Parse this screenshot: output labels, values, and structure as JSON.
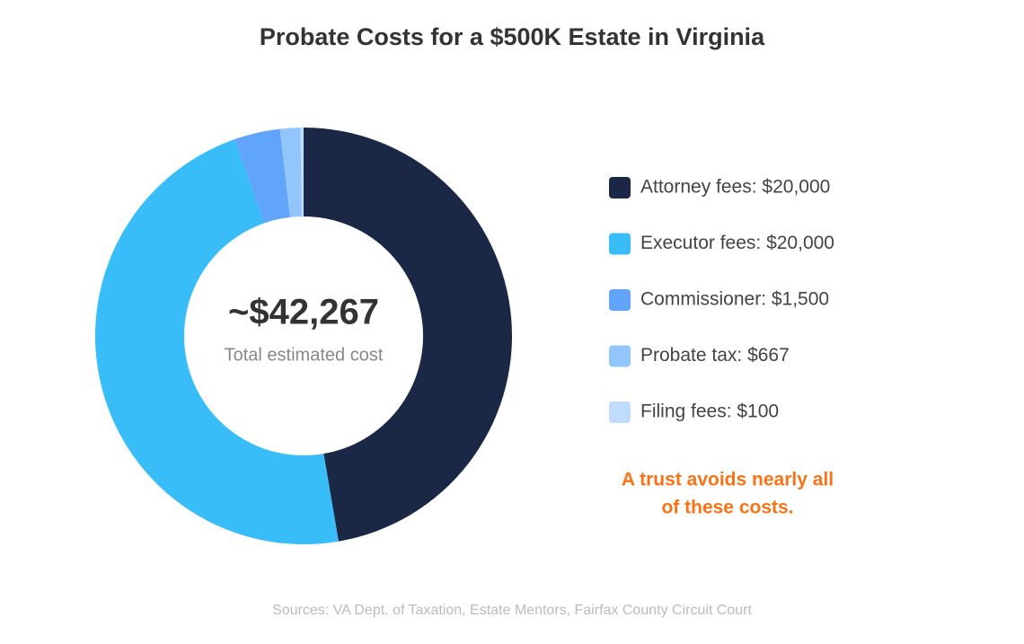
{
  "chart_data": {
    "type": "donut",
    "title": "Probate Costs for a $500K Estate in Virginia",
    "categories": [
      "Attorney fees: $20,000",
      "Executor fees: $20,000",
      "Commissioner: $1,500",
      "Probate tax: $667",
      "Filing fees: $100"
    ],
    "values": [
      20000,
      20000,
      1500,
      667,
      100
    ],
    "colors": [
      "#1b2845",
      "#38bdf8",
      "#60a5fa",
      "#93c5fd",
      "#bfdbfe"
    ],
    "center_value": "~$42,267",
    "center_label": "Total estimated cost",
    "annotation": [
      "A trust avoids nearly all",
      "of these costs."
    ],
    "source": "Sources: VA Dept. of Taxation, Estate Mentors, Fairfax County Circuit Court"
  }
}
